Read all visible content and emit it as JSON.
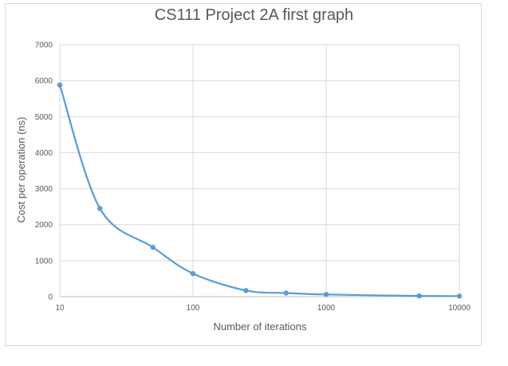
{
  "chart_data": {
    "type": "line",
    "title": "CS111 Project 2A first graph",
    "xlabel": "Number of iterations",
    "ylabel": "Cost per operation (ns)",
    "x_scale": "log",
    "xlim": [
      10,
      10000
    ],
    "ylim": [
      0,
      7000
    ],
    "x_ticks": [
      "10",
      "100",
      "1000",
      "10000"
    ],
    "y_ticks": [
      "0",
      "1000",
      "2000",
      "3000",
      "4000",
      "5000",
      "6000",
      "7000"
    ],
    "grid": true,
    "legend": "none",
    "series": [
      {
        "color": "#5b9bd5",
        "x": [
          10,
          20,
          50,
          100,
          250,
          500,
          1000,
          5000,
          10000
        ],
        "y": [
          5880,
          2450,
          1370,
          640,
          170,
          100,
          60,
          20,
          15
        ]
      }
    ]
  }
}
